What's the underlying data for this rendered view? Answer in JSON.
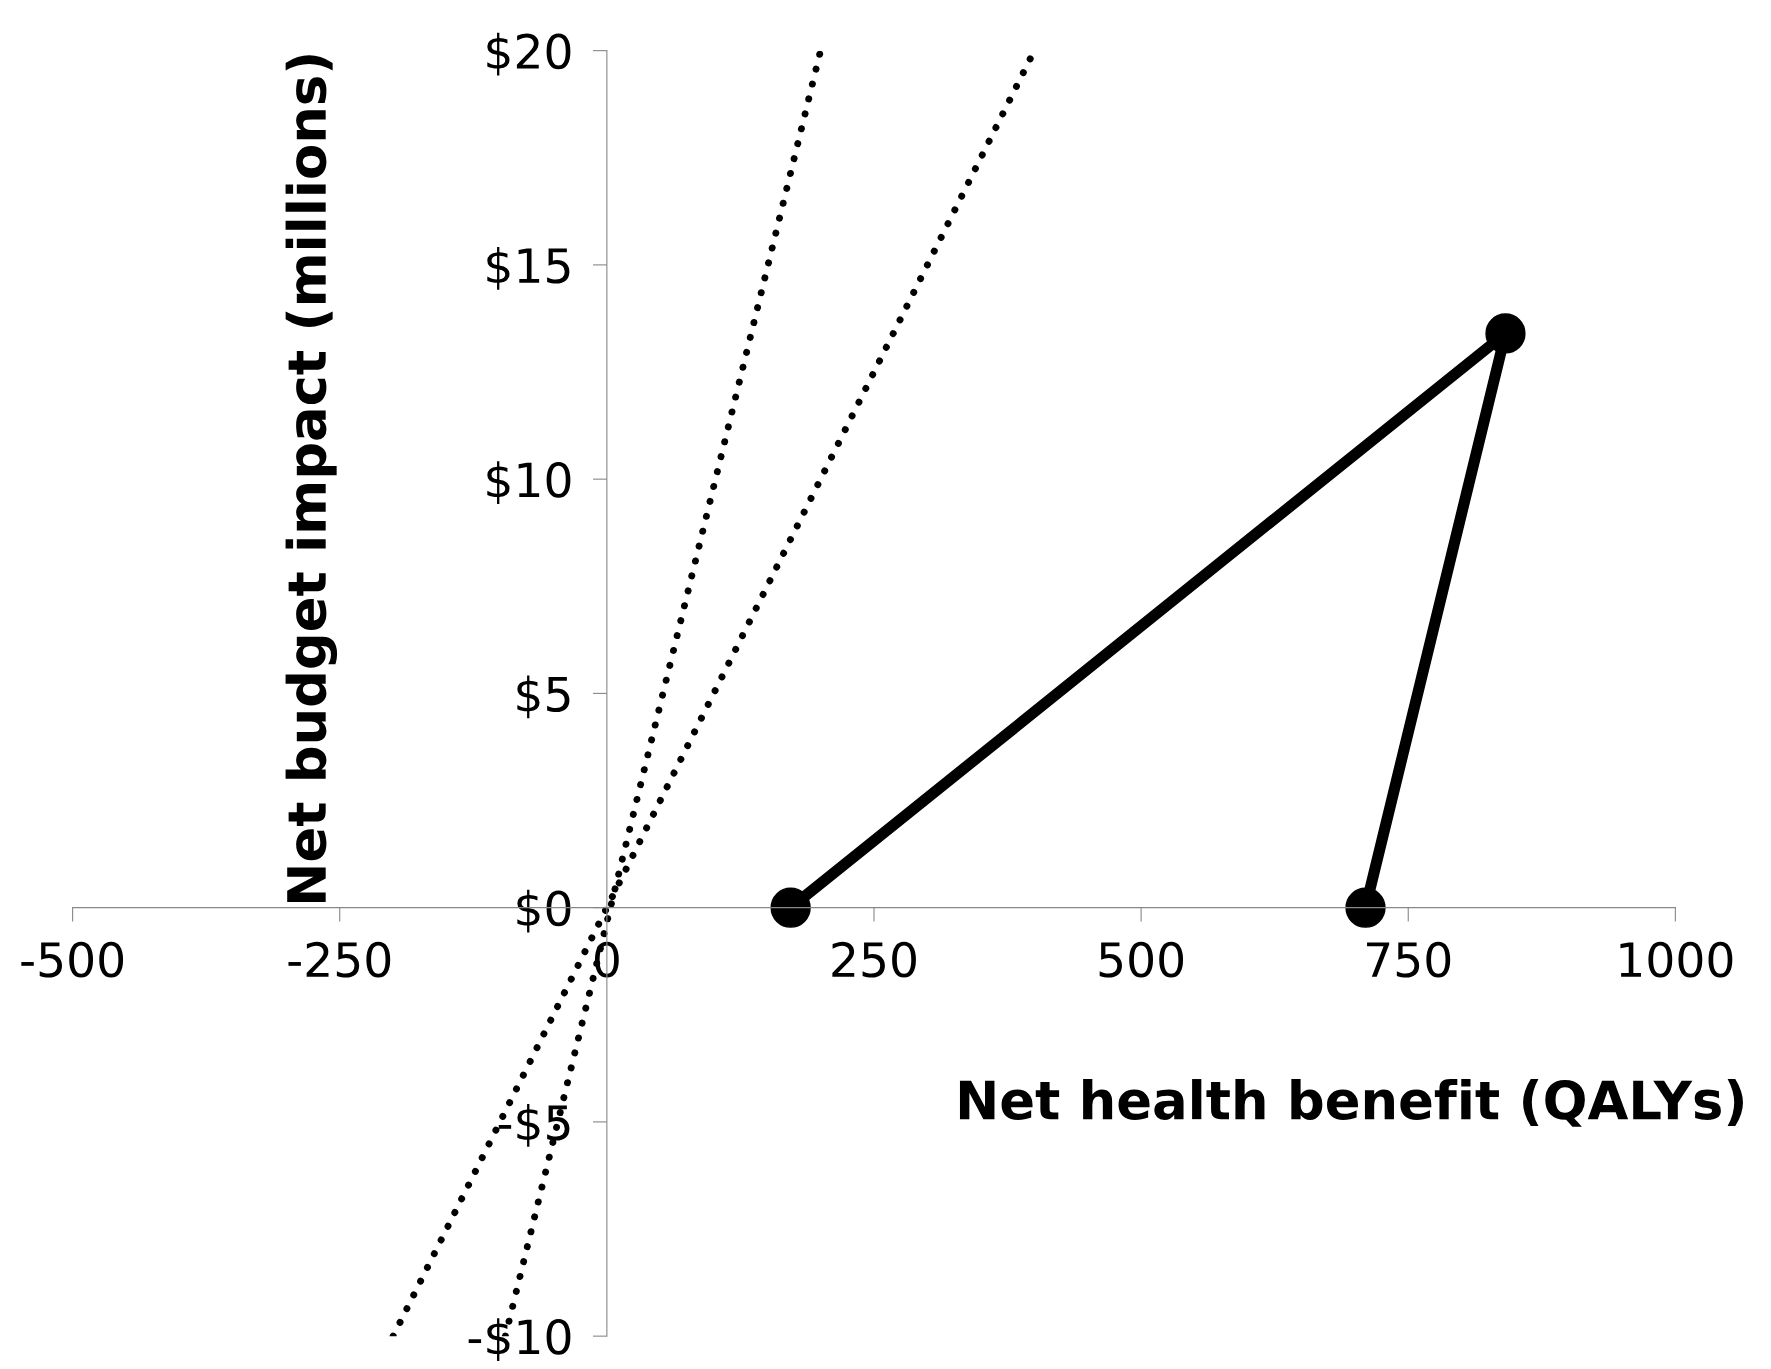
{
  "chart_data": {
    "type": "line",
    "xlabel": "Net health benefit (QALYs)",
    "ylabel": "Net budget impact (millions)",
    "xlim": [
      -500,
      1000
    ],
    "xticks": [
      -500,
      -250,
      0,
      250,
      500,
      750,
      1000
    ],
    "ylim": [
      -10,
      20
    ],
    "yticks": [
      {
        "value": -10,
        "label": "-$10"
      },
      {
        "value": -5,
        "label": "-$5"
      },
      {
        "value": 0,
        "label": "$0"
      },
      {
        "value": 5,
        "label": "$5"
      },
      {
        "value": 10,
        "label": "$10"
      },
      {
        "value": 15,
        "label": "$15"
      },
      {
        "value": 20,
        "label": "$20"
      }
    ],
    "grid": false,
    "legend": false,
    "series": [
      {
        "color": "#000000",
        "x": [
          172,
          841,
          710
        ],
        "values": [
          0,
          13.4,
          0
        ],
        "marker": "circle",
        "line_style": "solid"
      },
      {
        "color": "#000000",
        "x": [
          -95,
          200
        ],
        "values": [
          -10,
          20
        ],
        "marker": "none",
        "line_style": "dotted"
      },
      {
        "color": "#000000",
        "x": [
          -200,
          400
        ],
        "values": [
          -10,
          20
        ],
        "marker": "none",
        "line_style": "dotted"
      }
    ]
  }
}
